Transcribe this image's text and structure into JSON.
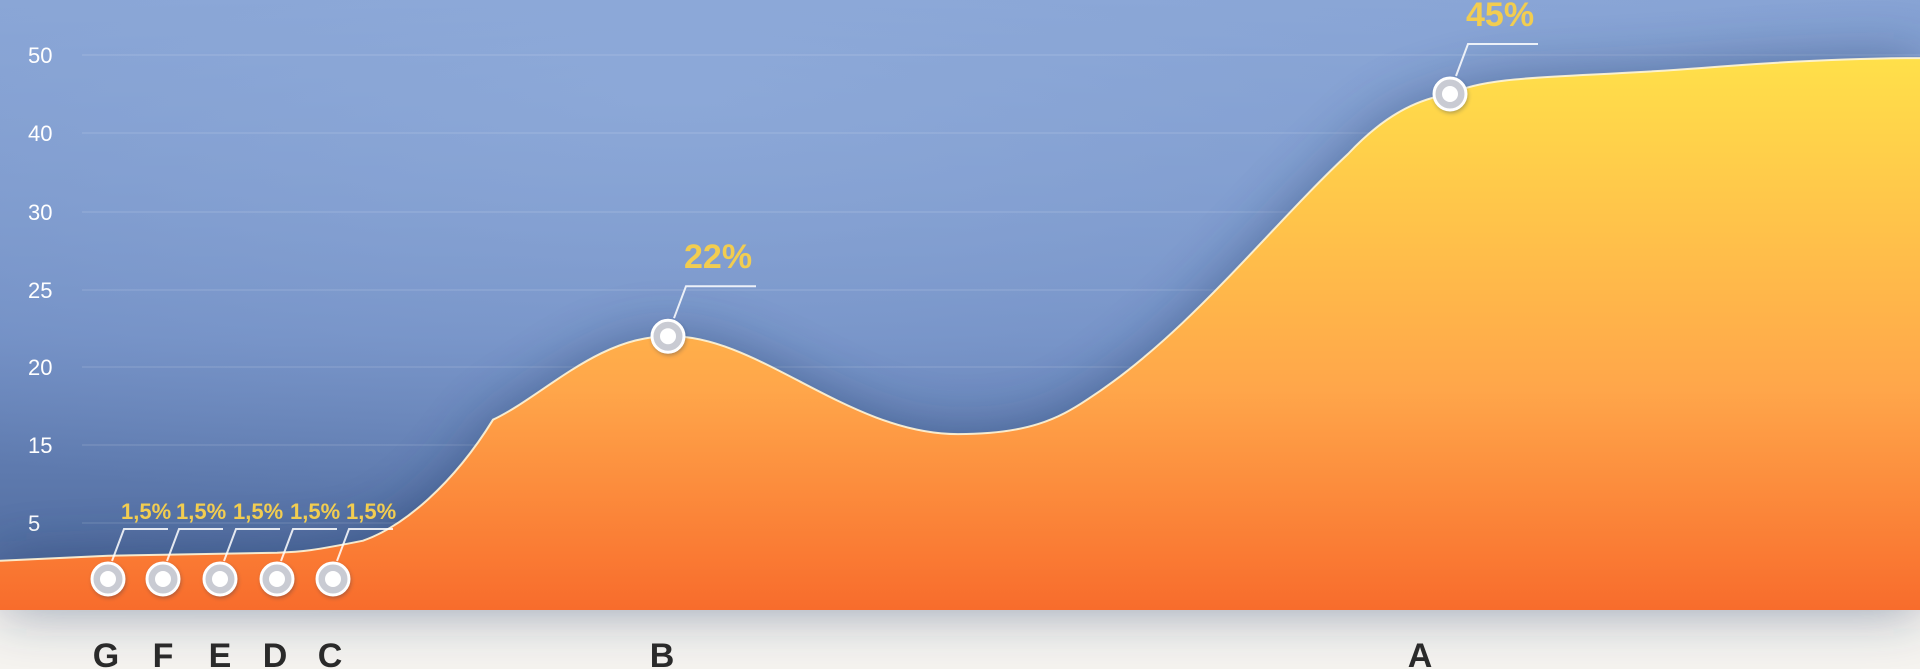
{
  "chart_data": {
    "type": "area",
    "title": "",
    "xlabel": "",
    "ylabel": "",
    "yticks": [
      "5",
      "15",
      "20",
      "25",
      "30",
      "40",
      "50"
    ],
    "categories": [
      "G",
      "F",
      "E",
      "D",
      "C",
      "B",
      "A"
    ],
    "points": [
      {
        "category": "G",
        "value": 1.5,
        "label": "1,5%"
      },
      {
        "category": "F",
        "value": 1.5,
        "label": "1,5%"
      },
      {
        "category": "E",
        "value": 1.5,
        "label": "1,5%"
      },
      {
        "category": "D",
        "value": 1.5,
        "label": "1,5%"
      },
      {
        "category": "C",
        "value": 1.5,
        "label": "1,5%"
      },
      {
        "category": "B",
        "value": 22,
        "label": "22%"
      },
      {
        "category": "A",
        "value": 45,
        "label": "45%"
      }
    ],
    "grid": true,
    "legend": "none",
    "colors": {
      "background_top": "#87a3d4",
      "background_bottom": "#4c6799",
      "area_top": "#ffe04a",
      "area_mid": "#ffa64a",
      "area_bottom": "#f86c2c",
      "label": "#f2cd50",
      "axis_text": "#ffffff",
      "category_text": "#2a2a2a",
      "footer": "#f5f3ef"
    }
  }
}
